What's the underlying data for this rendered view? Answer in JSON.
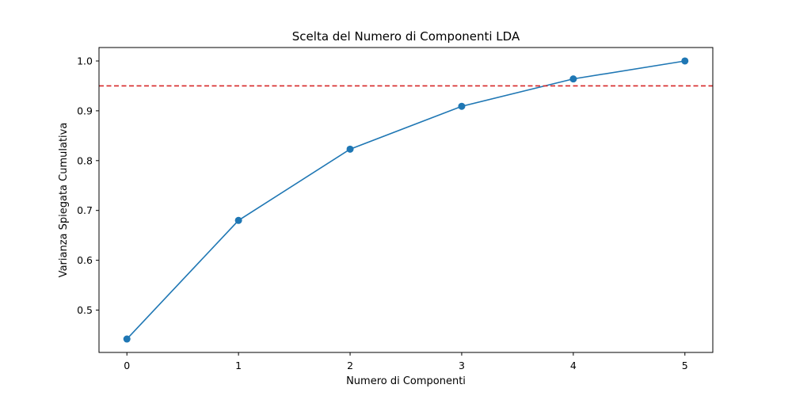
{
  "chart_data": {
    "type": "line",
    "title": "Scelta del Numero di Componenti LDA",
    "xlabel": "Numero di Componenti",
    "ylabel": "Varianza Spiegata Cumulativa",
    "x": [
      0,
      1,
      2,
      3,
      4,
      5
    ],
    "series": [
      {
        "name": "Varianza Spiegata Cumulativa",
        "values": [
          0.442,
          0.68,
          0.823,
          0.909,
          0.964,
          1.0
        ],
        "color": "#1f77b4",
        "marker": "circle"
      }
    ],
    "threshold": {
      "value": 0.95,
      "color": "#d62728",
      "style": "dashed"
    },
    "xticks": [
      "0",
      "1",
      "2",
      "3",
      "4",
      "5"
    ],
    "yticks": [
      "0.5",
      "0.6",
      "0.7",
      "0.8",
      "0.9",
      "1.0"
    ],
    "xlim": [
      -0.25,
      5.25
    ],
    "ylim": [
      0.415,
      1.027
    ],
    "grid": false,
    "legend": "none"
  }
}
